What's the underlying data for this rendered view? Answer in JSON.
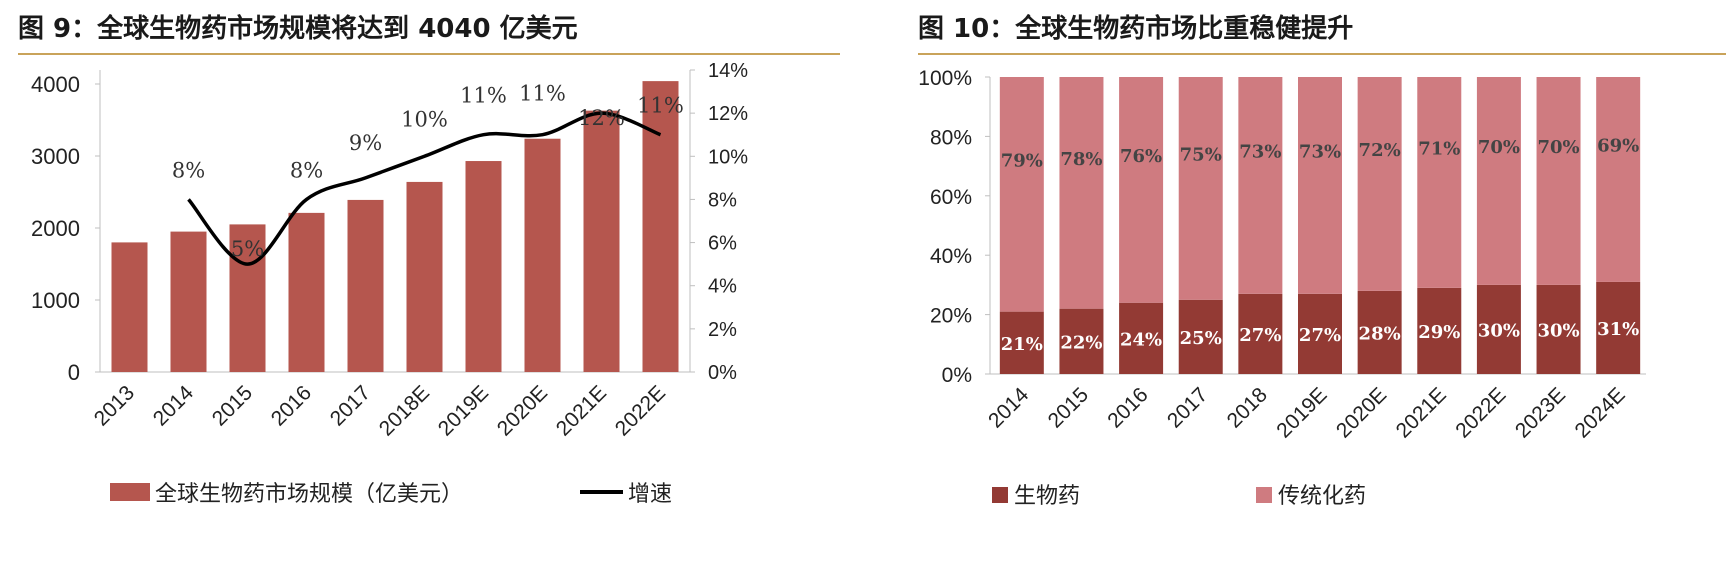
{
  "chart_data": [
    {
      "type": "bar",
      "title": "图 9：全球生物药市场规模将达到 4040 亿美元",
      "categories": [
        "2013",
        "2014",
        "2015",
        "2016",
        "2017",
        "2018E",
        "2019E",
        "2020E",
        "2021E",
        "2022E"
      ],
      "series": [
        {
          "name": "全球生物药市场规模（亿美元）",
          "type": "bar",
          "axis": "left",
          "color": "#b5564e",
          "values": [
            1800,
            1950,
            2050,
            2210,
            2390,
            2640,
            2930,
            3240,
            3630,
            4040
          ]
        },
        {
          "name": "增速",
          "type": "line",
          "axis": "right",
          "color": "#000000",
          "values": [
            null,
            8,
            5,
            8,
            9,
            10,
            11,
            11,
            12,
            11
          ],
          "labels": [
            "",
            "8%",
            "5%",
            "8%",
            "9%",
            "10%",
            "11%",
            "11%",
            "12%",
            "11%"
          ]
        }
      ],
      "ylim": [
        0,
        4000
      ],
      "yticks": [
        "0",
        "1000",
        "2000",
        "3000",
        "4000"
      ],
      "y2lim": [
        0,
        14
      ],
      "y2ticks": [
        "0%",
        "2%",
        "4%",
        "6%",
        "8%",
        "10%",
        "12%",
        "14%"
      ],
      "legend": "bottom"
    },
    {
      "type": "bar",
      "stacked": true,
      "title": "图 10：全球生物药市场比重稳健提升",
      "categories": [
        "2014",
        "2015",
        "2016",
        "2017",
        "2018",
        "2019E",
        "2020E",
        "2021E",
        "2022E",
        "2023E",
        "2024E"
      ],
      "series": [
        {
          "name": "生物药",
          "color": "#933a34",
          "values": [
            21,
            22,
            24,
            25,
            27,
            27,
            28,
            29,
            30,
            30,
            31
          ],
          "labels": [
            "21%",
            "22%",
            "24%",
            "25%",
            "27%",
            "27%",
            "28%",
            "29%",
            "30%",
            "30%",
            "31%"
          ]
        },
        {
          "name": "传统化药",
          "color": "#cf7b80",
          "values": [
            79,
            78,
            76,
            75,
            73,
            73,
            72,
            71,
            70,
            70,
            69
          ],
          "labels": [
            "79%",
            "78%",
            "76%",
            "75%",
            "73%",
            "73%",
            "72%",
            "71%",
            "70%",
            "70%",
            "69%"
          ]
        }
      ],
      "ylim": [
        0,
        100
      ],
      "yticks": [
        "0%",
        "20%",
        "40%",
        "60%",
        "80%",
        "100%"
      ],
      "legend": "bottom"
    }
  ]
}
